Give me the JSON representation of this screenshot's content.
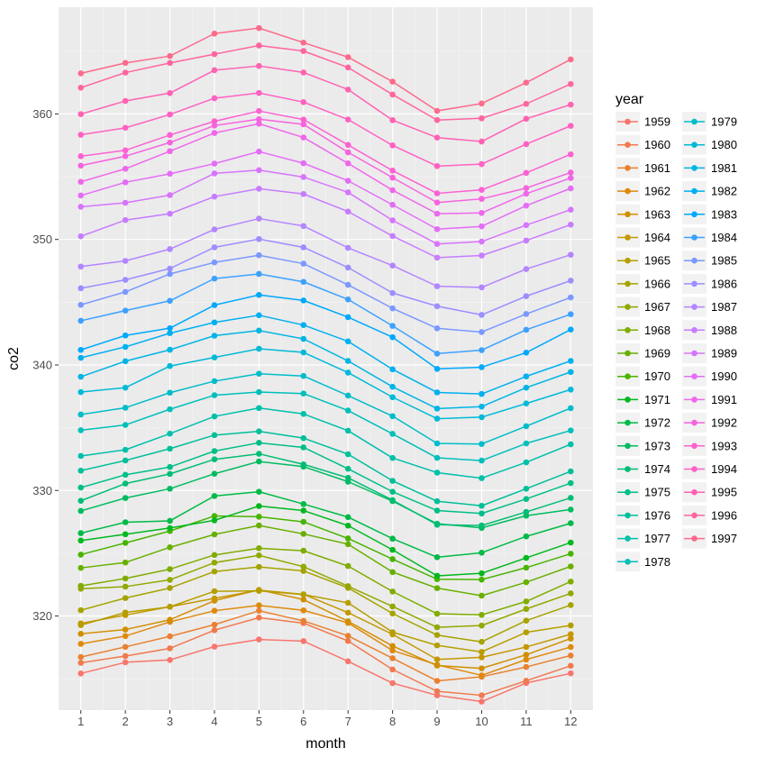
{
  "chart_data": {
    "type": "line",
    "xlabel": "month",
    "ylabel": "co2",
    "legend_title": "year",
    "legend_position": "right",
    "grid": true,
    "xlim": [
      0.5,
      12.5
    ],
    "ylim": [
      312.5,
      368.5
    ],
    "x": [
      1,
      2,
      3,
      4,
      5,
      6,
      7,
      8,
      9,
      10,
      11,
      12
    ],
    "x_ticks": [
      "1",
      "2",
      "3",
      "4",
      "5",
      "6",
      "7",
      "8",
      "9",
      "10",
      "11",
      "12"
    ],
    "y_ticks": [
      320,
      330,
      340,
      350,
      360
    ],
    "series": [
      {
        "name": "1959",
        "color": "#F8766D",
        "values": [
          315.42,
          316.31,
          316.5,
          317.56,
          318.13,
          318.0,
          316.39,
          314.65,
          313.68,
          313.18,
          314.66,
          315.43
        ]
      },
      {
        "name": "1960",
        "color": "#F1794E",
        "values": [
          316.27,
          316.81,
          317.42,
          318.87,
          319.87,
          319.43,
          318.01,
          315.74,
          314.0,
          313.68,
          314.84,
          316.03
        ]
      },
      {
        "name": "1961",
        "color": "#E98131",
        "values": [
          316.73,
          317.54,
          318.38,
          319.31,
          320.42,
          319.61,
          318.42,
          316.63,
          314.83,
          315.16,
          315.94,
          316.85
        ]
      },
      {
        "name": "1962",
        "color": "#DE8A0C",
        "values": [
          317.78,
          318.4,
          319.53,
          320.42,
          320.85,
          320.45,
          319.45,
          317.25,
          316.11,
          315.27,
          316.53,
          317.53
        ]
      },
      {
        "name": "1963",
        "color": "#D18F00",
        "values": [
          318.58,
          318.92,
          319.7,
          321.22,
          322.08,
          321.31,
          319.58,
          317.61,
          316.05,
          315.83,
          316.91,
          318.2
        ]
      },
      {
        "name": "1964",
        "color": "#C49800",
        "values": [
          319.41,
          320.07,
          320.74,
          321.4,
          322.06,
          321.73,
          320.27,
          318.54,
          316.54,
          316.71,
          317.53,
          318.55
        ]
      },
      {
        "name": "1965",
        "color": "#B59E00",
        "values": [
          319.27,
          320.28,
          320.73,
          321.97,
          322.0,
          321.71,
          321.05,
          318.71,
          317.66,
          317.14,
          318.7,
          319.25
        ]
      },
      {
        "name": "1966",
        "color": "#A5A300",
        "values": [
          320.46,
          321.43,
          322.23,
          323.54,
          323.91,
          323.59,
          322.24,
          320.2,
          318.48,
          317.94,
          319.63,
          320.87
        ]
      },
      {
        "name": "1967",
        "color": "#93A800",
        "values": [
          322.17,
          322.34,
          322.88,
          324.25,
          324.83,
          323.93,
          322.38,
          320.76,
          319.1,
          319.24,
          320.56,
          321.8
        ]
      },
      {
        "name": "1968",
        "color": "#7FAC00",
        "values": [
          322.4,
          322.99,
          323.73,
          324.86,
          325.4,
          325.2,
          323.98,
          321.95,
          320.18,
          320.09,
          321.16,
          322.74
        ]
      },
      {
        "name": "1969",
        "color": "#68B000",
        "values": [
          323.83,
          324.26,
          325.47,
          326.5,
          327.21,
          326.54,
          325.72,
          323.5,
          322.22,
          321.62,
          322.69,
          323.95
        ]
      },
      {
        "name": "1970",
        "color": "#49B400",
        "values": [
          324.89,
          325.82,
          326.77,
          327.97,
          327.91,
          327.5,
          326.18,
          324.53,
          322.93,
          322.9,
          323.85,
          324.96
        ]
      },
      {
        "name": "1971",
        "color": "#00B81F",
        "values": [
          326.01,
          326.51,
          327.01,
          327.62,
          328.76,
          328.4,
          327.2,
          325.27,
          323.2,
          323.4,
          324.63,
          325.85
        ]
      },
      {
        "name": "1972",
        "color": "#00BA47",
        "values": [
          326.6,
          327.47,
          327.58,
          329.56,
          329.9,
          328.92,
          327.88,
          326.16,
          324.68,
          325.04,
          326.34,
          327.39
        ]
      },
      {
        "name": "1973",
        "color": "#00BB60",
        "values": [
          328.37,
          329.4,
          330.14,
          331.33,
          332.31,
          331.9,
          330.7,
          329.15,
          327.35,
          327.02,
          327.99,
          328.48
        ]
      },
      {
        "name": "1974",
        "color": "#00BD75",
        "values": [
          329.18,
          330.55,
          331.32,
          332.48,
          332.92,
          332.08,
          331.01,
          329.23,
          327.27,
          327.21,
          328.29,
          329.41
        ]
      },
      {
        "name": "1975",
        "color": "#00BE88",
        "values": [
          330.23,
          331.25,
          331.87,
          333.14,
          333.8,
          333.43,
          331.73,
          329.9,
          328.4,
          328.17,
          329.32,
          330.59
        ]
      },
      {
        "name": "1976",
        "color": "#00BF99",
        "values": [
          331.58,
          332.39,
          333.33,
          334.41,
          334.71,
          334.17,
          332.89,
          330.77,
          329.14,
          328.78,
          330.14,
          331.52
        ]
      },
      {
        "name": "1977",
        "color": "#00C0AA",
        "values": [
          332.75,
          333.24,
          334.53,
          335.9,
          336.57,
          336.1,
          334.76,
          332.59,
          331.42,
          330.98,
          332.24,
          333.68
        ]
      },
      {
        "name": "1978",
        "color": "#00BFBA",
        "values": [
          334.8,
          335.22,
          336.47,
          337.59,
          337.84,
          337.72,
          336.37,
          334.51,
          332.6,
          332.38,
          333.75,
          334.78
        ]
      },
      {
        "name": "1979",
        "color": "#00BDC9",
        "values": [
          336.05,
          336.59,
          337.79,
          338.71,
          339.3,
          339.12,
          337.56,
          335.92,
          333.75,
          333.7,
          335.12,
          336.56
        ]
      },
      {
        "name": "1980",
        "color": "#00BAD7",
        "values": [
          337.84,
          338.19,
          339.91,
          340.6,
          341.29,
          341.0,
          339.39,
          337.43,
          335.72,
          335.84,
          336.93,
          338.04
        ]
      },
      {
        "name": "1981",
        "color": "#00B5E4",
        "values": [
          339.06,
          340.3,
          341.21,
          342.33,
          342.74,
          342.08,
          340.32,
          338.26,
          336.52,
          336.68,
          338.19,
          339.44
        ]
      },
      {
        "name": "1982",
        "color": "#00B0F0",
        "values": [
          340.57,
          341.44,
          342.53,
          343.39,
          343.96,
          343.18,
          341.88,
          339.65,
          337.81,
          337.69,
          339.09,
          340.32
        ]
      },
      {
        "name": "1983",
        "color": "#00A9FB",
        "values": [
          341.2,
          342.35,
          342.93,
          344.77,
          345.58,
          345.14,
          343.81,
          342.21,
          339.69,
          339.82,
          340.98,
          342.82
        ]
      },
      {
        "name": "1984",
        "color": "#3DA1FF",
        "values": [
          343.52,
          344.33,
          345.11,
          346.88,
          347.25,
          346.62,
          345.22,
          343.11,
          340.9,
          341.18,
          342.8,
          344.04
        ]
      },
      {
        "name": "1985",
        "color": "#7B98FF",
        "values": [
          344.79,
          345.82,
          347.25,
          348.17,
          348.74,
          348.07,
          346.38,
          344.51,
          342.92,
          342.62,
          344.06,
          345.38
        ]
      },
      {
        "name": "1986",
        "color": "#9B8EFF",
        "values": [
          346.11,
          346.78,
          347.68,
          349.37,
          350.03,
          349.37,
          347.76,
          345.73,
          344.68,
          343.99,
          345.48,
          346.72
        ]
      },
      {
        "name": "1987",
        "color": "#B385FF",
        "values": [
          347.84,
          348.29,
          349.23,
          350.8,
          351.66,
          351.07,
          349.33,
          347.92,
          346.27,
          346.18,
          347.64,
          348.78
        ]
      },
      {
        "name": "1988",
        "color": "#C77CFF",
        "values": [
          350.25,
          351.54,
          352.05,
          353.41,
          354.04,
          353.62,
          352.22,
          350.27,
          348.55,
          348.72,
          349.91,
          351.18
        ]
      },
      {
        "name": "1989",
        "color": "#D774FD",
        "values": [
          352.6,
          352.92,
          353.53,
          355.26,
          355.52,
          354.97,
          353.75,
          351.52,
          349.64,
          349.83,
          351.14,
          352.37
        ]
      },
      {
        "name": "1990",
        "color": "#E46DF6",
        "values": [
          353.5,
          354.55,
          355.23,
          356.04,
          357.0,
          356.07,
          354.67,
          352.76,
          350.82,
          351.04,
          352.69,
          354.07
        ]
      },
      {
        "name": "1991",
        "color": "#EF67EB",
        "values": [
          354.59,
          355.63,
          357.03,
          358.48,
          359.22,
          358.12,
          356.06,
          353.92,
          352.05,
          352.11,
          353.64,
          354.89
        ]
      },
      {
        "name": "1992",
        "color": "#F663DF",
        "values": [
          355.88,
          356.63,
          357.72,
          359.07,
          359.58,
          359.17,
          356.94,
          354.92,
          352.94,
          353.23,
          354.09,
          355.33
        ]
      },
      {
        "name": "1993",
        "color": "#FC61D2",
        "values": [
          356.63,
          357.1,
          358.32,
          359.41,
          360.23,
          359.55,
          357.53,
          355.48,
          353.67,
          353.95,
          355.3,
          356.78
        ]
      },
      {
        "name": "1994",
        "color": "#FF61C3",
        "values": [
          358.34,
          358.89,
          359.95,
          361.25,
          361.67,
          360.94,
          359.55,
          357.49,
          355.84,
          356.0,
          357.59,
          359.05
        ]
      },
      {
        "name": "1995",
        "color": "#FF62B2",
        "values": [
          359.98,
          361.03,
          361.66,
          363.48,
          363.82,
          363.3,
          361.94,
          359.5,
          358.11,
          357.8,
          359.61,
          360.74
        ]
      },
      {
        "name": "1996",
        "color": "#FF65A0",
        "values": [
          362.09,
          363.29,
          364.06,
          364.76,
          365.45,
          365.01,
          363.7,
          361.54,
          359.51,
          359.65,
          360.8,
          362.38
        ]
      },
      {
        "name": "1997",
        "color": "#FC6A8C",
        "values": [
          363.23,
          364.06,
          364.61,
          366.4,
          366.84,
          365.68,
          364.52,
          362.57,
          360.24,
          360.83,
          362.49,
          364.34
        ]
      }
    ]
  }
}
